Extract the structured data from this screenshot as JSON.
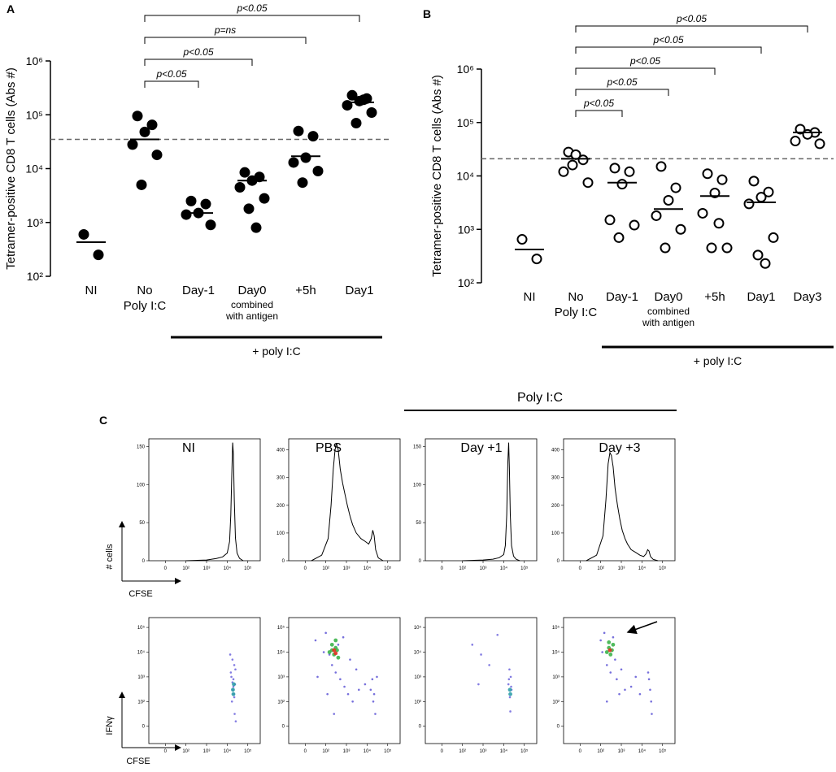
{
  "chart_data": [
    {
      "type": "dot",
      "panel": "A",
      "ylabel": "Tetramer-positive CD8 T cells (Abs #)",
      "yscale": "log",
      "ylim": [
        100,
        1000000
      ],
      "yticks": [
        {
          "value": 100,
          "label": "10²"
        },
        {
          "value": 1000,
          "label": "10³"
        },
        {
          "value": 10000,
          "label": "10⁴"
        },
        {
          "value": 100000,
          "label": "10⁵"
        },
        {
          "value": 1000000,
          "label": "10⁶"
        }
      ],
      "categories": [
        "NI",
        "No",
        "Day-1",
        "Day0",
        "+5h",
        "Day1"
      ],
      "category_sublabels": [
        null,
        [
          "Poly I:C"
        ],
        null,
        [
          "combined",
          "with antigen"
        ],
        null,
        null
      ],
      "points": [
        [
          600,
          250
        ],
        [
          95000,
          65000,
          48000,
          28000,
          18000,
          5000
        ],
        [
          2500,
          2200,
          1500,
          1400,
          900
        ],
        [
          8500,
          7000,
          6000,
          4500,
          2800,
          1800,
          800
        ],
        [
          50000,
          40000,
          16000,
          13000,
          9000,
          5500
        ],
        [
          230000,
          200000,
          180000,
          150000,
          110000,
          70000,
          190000
        ]
      ],
      "medians": [
        430,
        35000,
        1500,
        6000,
        17000,
        170000
      ],
      "reference": 35000,
      "marker": "filled",
      "color": "#000000",
      "comparisons": [
        {
          "label": "p<0.05",
          "from": 1,
          "to": 2
        },
        {
          "label": "p<0.05",
          "from": 1,
          "to": 3
        },
        {
          "label": "p=ns",
          "from": 1,
          "to": 4
        },
        {
          "label": "p<0.05",
          "from": 1,
          "to": 5
        }
      ],
      "group_label": "+ poly I:C"
    },
    {
      "type": "dot",
      "panel": "B",
      "ylabel": "Tetramer-positive CD8 T cells (Abs #)",
      "yscale": "log",
      "ylim": [
        100,
        1000000
      ],
      "yticks": [
        {
          "value": 100,
          "label": "10²"
        },
        {
          "value": 1000,
          "label": "10³"
        },
        {
          "value": 10000,
          "label": "10⁴"
        },
        {
          "value": 100000,
          "label": "10⁵"
        },
        {
          "value": 1000000,
          "label": "10⁶"
        }
      ],
      "categories": [
        "NI",
        "No",
        "Day-1",
        "Day0",
        "+5h",
        "Day1",
        "Day3"
      ],
      "category_sublabels": [
        null,
        [
          "Poly I:C"
        ],
        null,
        [
          "combined",
          "with antigen"
        ],
        null,
        null,
        null
      ],
      "points": [
        [
          650,
          280
        ],
        [
          28000,
          20000,
          25000,
          12000,
          7500,
          16000
        ],
        [
          14000,
          12000,
          7000,
          1500,
          1200,
          700
        ],
        [
          15000,
          6000,
          3500,
          1800,
          1000,
          450
        ],
        [
          11000,
          8500,
          4800,
          2000,
          450,
          450,
          1300
        ],
        [
          8000,
          5000,
          4000,
          3000,
          700,
          330,
          230
        ],
        [
          75000,
          65000,
          60000,
          45000,
          40000
        ]
      ],
      "medians": [
        420,
        21000,
        7500,
        2400,
        4200,
        3200,
        65000
      ],
      "reference": 21000,
      "marker": "hollow",
      "color": "#000000",
      "comparisons": [
        {
          "label": "p<0.05",
          "from": 1,
          "to": 2
        },
        {
          "label": "p<0.05",
          "from": 1,
          "to": 3
        },
        {
          "label": "p<0.05",
          "from": 1,
          "to": 4
        },
        {
          "label": "p<0.05",
          "from": 1,
          "to": 5
        },
        {
          "label": "p<0.05",
          "from": 1,
          "to": 6
        }
      ],
      "group_label": "+ poly I:C"
    },
    {
      "type": "histline",
      "xscale": "biex",
      "xlim": [
        -80,
        400000
      ],
      "ylim": [
        0,
        160
      ],
      "xticks": [
        0,
        {
          "value": 100,
          "label": "10²"
        },
        {
          "value": 1000,
          "label": "10³"
        },
        {
          "value": 10000,
          "label": "10⁴"
        },
        {
          "value": 100000,
          "label": "10⁵"
        }
      ],
      "yticks": [
        0,
        50,
        100,
        150
      ],
      "color": "#000000",
      "x": [
        100,
        1000,
        3000,
        6000,
        10000,
        13000,
        15000,
        17000,
        18500,
        20000,
        22000,
        25000,
        30000,
        40000,
        60000
      ],
      "values": [
        0,
        1,
        3,
        5,
        10,
        25,
        60,
        120,
        155,
        140,
        80,
        30,
        10,
        3,
        0
      ]
    },
    {
      "type": "histline",
      "xscale": "biex",
      "xlim": [
        -80,
        400000
      ],
      "ylim": [
        0,
        440
      ],
      "xticks": [
        0,
        {
          "value": 100,
          "label": "10²"
        },
        {
          "value": 1000,
          "label": "10³"
        },
        {
          "value": 10000,
          "label": "10⁴"
        },
        {
          "value": 100000,
          "label": "10⁵"
        }
      ],
      "yticks": [
        0,
        100,
        200,
        300,
        400
      ],
      "color": "#000000",
      "x": [
        30,
        80,
        130,
        180,
        230,
        280,
        330,
        400,
        500,
        650,
        850,
        1100,
        1500,
        2000,
        3000,
        5000,
        8000,
        12000,
        16000,
        19000,
        22000,
        26000,
        35000,
        60000
      ],
      "values": [
        0,
        20,
        80,
        200,
        330,
        400,
        425,
        400,
        330,
        280,
        240,
        200,
        160,
        130,
        100,
        80,
        70,
        60,
        80,
        110,
        90,
        40,
        10,
        0
      ]
    },
    {
      "type": "histline",
      "xscale": "biex",
      "xlim": [
        -80,
        400000
      ],
      "ylim": [
        0,
        160
      ],
      "xticks": [
        0,
        {
          "value": 100,
          "label": "10²"
        },
        {
          "value": 1000,
          "label": "10³"
        },
        {
          "value": 10000,
          "label": "10⁴"
        },
        {
          "value": 100000,
          "label": "10⁵"
        }
      ],
      "yticks": [
        0,
        50,
        100,
        150
      ],
      "color": "#000000",
      "x": [
        100,
        1000,
        3000,
        6000,
        10000,
        12000,
        14000,
        16000,
        17500,
        19000,
        21000,
        24000,
        30000,
        40000,
        60000
      ],
      "values": [
        0,
        1,
        2,
        4,
        8,
        20,
        60,
        130,
        155,
        120,
        60,
        20,
        6,
        2,
        0
      ]
    },
    {
      "type": "histline",
      "xscale": "biex",
      "xlim": [
        -80,
        400000
      ],
      "ylim": [
        0,
        440
      ],
      "xticks": [
        0,
        {
          "value": 100,
          "label": "10²"
        },
        {
          "value": 1000,
          "label": "10³"
        },
        {
          "value": 10000,
          "label": "10⁴"
        },
        {
          "value": 100000,
          "label": "10⁵"
        }
      ],
      "yticks": [
        0,
        100,
        200,
        300,
        400
      ],
      "color": "#000000",
      "x": [
        30,
        80,
        130,
        180,
        230,
        280,
        330,
        400,
        500,
        650,
        850,
        1100,
        1500,
        2000,
        3000,
        5000,
        8000,
        12000,
        16000,
        19000,
        22000,
        26000,
        35000,
        60000
      ],
      "values": [
        0,
        20,
        90,
        220,
        350,
        390,
        380,
        340,
        260,
        200,
        150,
        110,
        80,
        60,
        40,
        30,
        20,
        15,
        25,
        40,
        35,
        15,
        5,
        0
      ]
    },
    {
      "type": "density",
      "xscale": "biex",
      "yscale": "biex",
      "xlim": [
        -80,
        400000
      ],
      "ylim": [
        -70,
        250000
      ],
      "xticks": [
        0,
        {
          "value": 100,
          "label": "10²"
        },
        {
          "value": 1000,
          "label": "10³"
        },
        {
          "value": 10000,
          "label": "10⁴"
        },
        {
          "value": 100000,
          "label": "10⁵"
        }
      ],
      "yticks": [
        0,
        {
          "value": 100,
          "label": "10²"
        },
        {
          "value": 1000,
          "label": "10³"
        },
        {
          "value": 10000,
          "label": "10⁴"
        },
        {
          "value": 100000,
          "label": "10⁵"
        }
      ],
      "series": [
        {
          "color": "#5a50d8",
          "x": [
            14000,
            18000,
            22000,
            25000,
            16000,
            20000,
            24000,
            19000,
            21000,
            17000,
            23000,
            26000,
            15000,
            20000,
            22000,
            18000
          ],
          "y": [
            8000,
            5000,
            3000,
            2000,
            1000,
            800,
            500,
            300,
            200,
            100,
            50,
            20,
            1500,
            400,
            150,
            600
          ]
        },
        {
          "color": "#2f9fa8",
          "x": [
            19000,
            21000,
            20000
          ],
          "y": [
            300,
            500,
            200
          ]
        }
      ]
    },
    {
      "type": "density",
      "xscale": "biex",
      "yscale": "biex",
      "xlim": [
        -80,
        400000
      ],
      "ylim": [
        -70,
        250000
      ],
      "xticks": [
        0,
        {
          "value": 100,
          "label": "10²"
        },
        {
          "value": 1000,
          "label": "10³"
        },
        {
          "value": 10000,
          "label": "10⁴"
        },
        {
          "value": 100000,
          "label": "10⁵"
        }
      ],
      "yticks": [
        0,
        {
          "value": 100,
          "label": "10²"
        },
        {
          "value": 1000,
          "label": "10³"
        },
        {
          "value": 10000,
          "label": "10⁴"
        },
        {
          "value": 100000,
          "label": "10⁵"
        }
      ],
      "series": [
        {
          "color": "#4a40d0",
          "x": [
            50,
            100,
            150,
            200,
            300,
            500,
            800,
            1200,
            2000,
            4000,
            8000,
            15000,
            20000,
            25000,
            30000,
            60,
            120,
            400,
            700,
            1500,
            3000,
            18000,
            22000,
            250,
            90
          ],
          "y": [
            30000,
            60000,
            8000,
            3000,
            1500,
            800,
            400,
            200,
            100,
            300,
            500,
            300,
            100,
            50,
            1000,
            1000,
            200,
            20000,
            40000,
            5000,
            2000,
            800,
            200,
            50,
            10000
          ]
        },
        {
          "color": "#3cb44b",
          "x": [
            150,
            200,
            250,
            300,
            350,
            400,
            300,
            200
          ],
          "y": [
            10000,
            20000,
            8000,
            15000,
            12000,
            6000,
            30000,
            12000
          ]
        },
        {
          "color": "#e03020",
          "x": [
            250,
            300
          ],
          "y": [
            12000,
            9000
          ]
        }
      ]
    },
    {
      "type": "density",
      "xscale": "biex",
      "yscale": "biex",
      "xlim": [
        -80,
        400000
      ],
      "ylim": [
        -70,
        250000
      ],
      "xticks": [
        0,
        {
          "value": 100,
          "label": "10²"
        },
        {
          "value": 1000,
          "label": "10³"
        },
        {
          "value": 10000,
          "label": "10⁴"
        },
        {
          "value": 100000,
          "label": "10⁵"
        }
      ],
      "yticks": [
        0,
        {
          "value": 100,
          "label": "10²"
        },
        {
          "value": 1000,
          "label": "10³"
        },
        {
          "value": 10000,
          "label": "10⁴"
        },
        {
          "value": 100000,
          "label": "10⁵"
        }
      ],
      "series": [
        {
          "color": "#5a50d8",
          "x": [
            300,
            800,
            2000,
            5000,
            600,
            19000,
            22000,
            17000,
            24000,
            20000,
            21000,
            18000,
            23000
          ],
          "y": [
            20000,
            8000,
            3000,
            50000,
            500,
            2000,
            1000,
            500,
            300,
            150,
            60,
            800,
            400
          ]
        },
        {
          "color": "#2f9fa8",
          "x": [
            20000,
            21000
          ],
          "y": [
            300,
            200
          ]
        }
      ]
    },
    {
      "type": "density",
      "xscale": "biex",
      "yscale": "biex",
      "xlim": [
        -80,
        400000
      ],
      "ylim": [
        -70,
        250000
      ],
      "xticks": [
        0,
        {
          "value": 100,
          "label": "10²"
        },
        {
          "value": 1000,
          "label": "10³"
        },
        {
          "value": 10000,
          "label": "10⁴"
        },
        {
          "value": 100000,
          "label": "10⁵"
        }
      ],
      "yticks": [
        0,
        {
          "value": 100,
          "label": "10²"
        },
        {
          "value": 1000,
          "label": "10³"
        },
        {
          "value": 10000,
          "label": "10⁴"
        },
        {
          "value": 100000,
          "label": "10⁵"
        }
      ],
      "series": [
        {
          "color": "#4a40d0",
          "x": [
            100,
            150,
            200,
            300,
            400,
            600,
            800,
            1500,
            3000,
            8000,
            20000,
            25000,
            30000,
            200,
            500,
            1000,
            5000,
            22000,
            28000,
            120
          ],
          "y": [
            30000,
            60000,
            3000,
            1500,
            40000,
            800,
            200,
            300,
            400,
            200,
            1500,
            300,
            50,
            100,
            5000,
            2000,
            1000,
            800,
            100,
            10000
          ]
        },
        {
          "color": "#3cb44b",
          "x": [
            200,
            250,
            300,
            350,
            400,
            250
          ],
          "y": [
            10000,
            15000,
            8000,
            12000,
            20000,
            25000
          ]
        },
        {
          "color": "#e03020",
          "x": [
            280
          ],
          "y": [
            12000
          ]
        }
      ]
    }
  ],
  "panel_c": {
    "label": "C",
    "group_label": "Poly I:C",
    "columns": [
      "NI",
      "PBS",
      "Day +1",
      "Day +3"
    ],
    "hist_ylabel": "# cells",
    "hist_xlabel": "CFSE",
    "dens_ylabel": "IFNγ",
    "dens_xlabel": "CFSE"
  }
}
